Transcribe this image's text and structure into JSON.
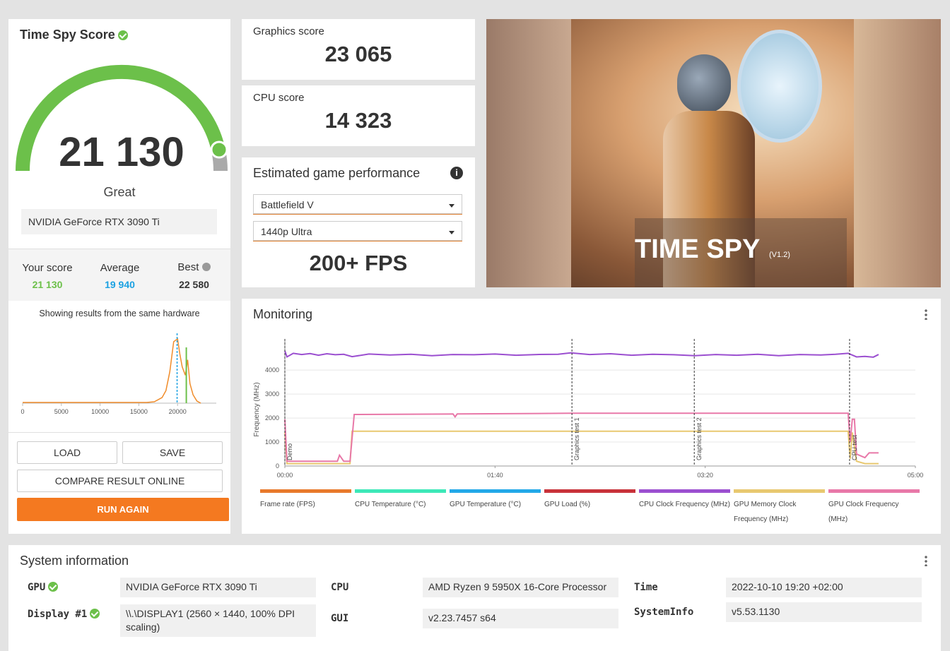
{
  "score_panel": {
    "title": "Time Spy Score",
    "score": "21 130",
    "rating": "Great",
    "gpu": "NVIDIA GeForce RTX 3090 Ti",
    "your_score": {
      "label": "Your score",
      "score": {
        "value": 21130,
        "label": "21 130"
      }
    },
    "average": {
      "label": "Average",
      "score": {
        "value": 19940,
        "label": "19 940"
      }
    },
    "best": {
      "label": "Best",
      "score": {
        "value": 22580,
        "label": "22 580"
      }
    },
    "note": "Showing results from the same hardware",
    "buttons": {
      "load": "LOAD",
      "save": "SAVE",
      "compare": "COMPARE RESULT ONLINE",
      "run": "RUN AGAIN"
    }
  },
  "distribution": {
    "type": "line",
    "color": "#f08c2a",
    "x": [
      0,
      2000,
      4000,
      6000,
      8000,
      10000,
      12000,
      14000,
      16000,
      17000,
      18000,
      18500,
      19000,
      19500,
      20000,
      20300,
      20600,
      21000,
      21300,
      21600,
      22000,
      22500,
      23000
    ],
    "values": [
      1,
      1,
      1,
      1,
      1,
      1,
      1,
      1,
      1,
      2,
      8,
      18,
      45,
      88,
      92,
      70,
      52,
      40,
      62,
      28,
      12,
      3,
      0
    ],
    "xlim": [
      0,
      25000
    ],
    "ylim": [
      0,
      100
    ],
    "xticks": [
      0,
      5000,
      10000,
      15000,
      20000
    ],
    "average_color": "#1ba1e2",
    "your_score_color": "#6cc04a"
  },
  "graphics_score": {
    "label": "Graphics score",
    "value": "23 065"
  },
  "cpu_score": {
    "label": "CPU score",
    "value": "14 323"
  },
  "game_performance": {
    "title": "Estimated game performance",
    "game": "Battlefield V",
    "preset": "1440p Ultra",
    "fps": "200+ FPS"
  },
  "banner": {
    "title": "TIME SPY",
    "version": "(V1.2)"
  },
  "monitoring": {
    "title": "Monitoring",
    "chart_data": {
      "type": "line",
      "ylabel": "Frequency (MHz)",
      "xlim": [
        0,
        300
      ],
      "ylim": [
        0,
        5300
      ],
      "xticks": [
        {
          "value": 0,
          "label": "00:00"
        },
        {
          "value": 100,
          "label": "01:40"
        },
        {
          "value": 200,
          "label": "03:20"
        },
        {
          "value": 300,
          "label": "05:00"
        }
      ],
      "yticks": [
        0,
        1000,
        2000,
        3000,
        4000
      ],
      "grid": true,
      "annotations": [
        {
          "x": 0,
          "label": "Demo"
        },
        {
          "x": 136.6,
          "label": "Graphics test 1"
        },
        {
          "x": 194.8,
          "label": "Graphics test 2"
        },
        {
          "x": 268.7,
          "label": "CPU test"
        }
      ],
      "series": [
        {
          "name": "Frame rate (FPS)",
          "color": "#e8792b"
        },
        {
          "name": "CPU Temperature (°C)",
          "color": "#3de8b8"
        },
        {
          "name": "GPU Temperature (°C)",
          "color": "#22a8e8"
        },
        {
          "name": "GPU Load (%)",
          "color": "#c8323a"
        },
        {
          "name": "CPU Clock Frequency (MHz)",
          "color": "#9b4fd0",
          "x": [
            0,
            1,
            4,
            8,
            12,
            16,
            20,
            24,
            28,
            32,
            40,
            50,
            60,
            70,
            80,
            90,
            100,
            110,
            120,
            130,
            136,
            145,
            155,
            165,
            175,
            185,
            195,
            205,
            215,
            225,
            235,
            245,
            255,
            262,
            268,
            272,
            276,
            280,
            282.5
          ],
          "values": [
            4800,
            4550,
            4700,
            4650,
            4690,
            4620,
            4680,
            4640,
            4660,
            4560,
            4670,
            4630,
            4660,
            4600,
            4650,
            4640,
            4670,
            4620,
            4650,
            4660,
            4720,
            4650,
            4680,
            4620,
            4660,
            4640,
            4600,
            4650,
            4620,
            4660,
            4600,
            4650,
            4630,
            4660,
            4700,
            4550,
            4570,
            4540,
            4650
          ]
        },
        {
          "name": "GPU Memory Clock Frequency (MHz)",
          "color": "#e8c870",
          "x": [
            0,
            1,
            5,
            25,
            28,
            31,
            32,
            100,
            200,
            268,
            269,
            270,
            272,
            276,
            282.5
          ],
          "values": [
            1400,
            100,
            100,
            100,
            100,
            100,
            1450,
            1450,
            1450,
            1450,
            300,
            1400,
            200,
            100,
            100
          ]
        },
        {
          "name": "GPU Clock Frequency (MHz)",
          "color": "#e878a8",
          "x": [
            0,
            1,
            5,
            25,
            26,
            28,
            31,
            33,
            80,
            81,
            82,
            136,
            200,
            268,
            269,
            270,
            271,
            272,
            276,
            278,
            282.5
          ],
          "values": [
            1950,
            200,
            200,
            200,
            450,
            200,
            200,
            2150,
            2170,
            2050,
            2170,
            2200,
            2200,
            2200,
            1000,
            1950,
            1950,
            500,
            350,
            550,
            550
          ]
        }
      ]
    }
  },
  "system_info": {
    "title": "System information",
    "items": [
      {
        "label": "GPU",
        "value": "NVIDIA GeForce RTX 3090 Ti",
        "check": true
      },
      {
        "label": "Display #1",
        "value": "\\\\.\\DISPLAY1 (2560 × 1440, 100% DPI scaling)",
        "check": true
      },
      {
        "label": "CPU",
        "value": "AMD Ryzen 9 5950X 16-Core Processor",
        "check": false
      },
      {
        "label": "GUI",
        "value": "v2.23.7457 s64",
        "check": false
      },
      {
        "label": "Time",
        "value": "2022-10-10 19:20 +02:00",
        "check": false
      },
      {
        "label": "SystemInfo",
        "value": "v5.53.1130",
        "check": false
      }
    ]
  }
}
